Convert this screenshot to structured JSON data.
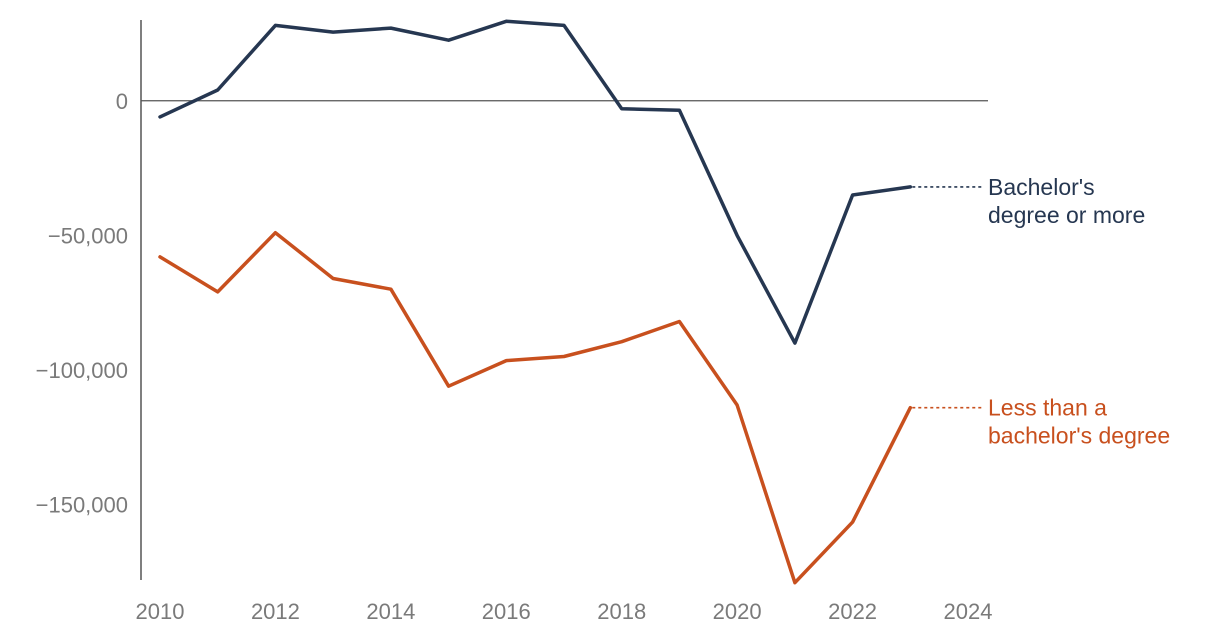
{
  "chart_data": {
    "type": "line",
    "title": "",
    "xlabel": "",
    "ylabel": "",
    "xlim": [
      2010,
      2024
    ],
    "ylim": [
      -178000,
      30000
    ],
    "x_ticks": [
      {
        "value": 2010,
        "label": "2010"
      },
      {
        "value": 2012,
        "label": "2012"
      },
      {
        "value": 2014,
        "label": "2014"
      },
      {
        "value": 2016,
        "label": "2016"
      },
      {
        "value": 2018,
        "label": "2018"
      },
      {
        "value": 2020,
        "label": "2020"
      },
      {
        "value": 2022,
        "label": "2022"
      },
      {
        "value": 2024,
        "label": "2024"
      }
    ],
    "y_ticks": [
      {
        "value": 0,
        "label": "0"
      },
      {
        "value": -50000,
        "label": "−50,000"
      },
      {
        "value": -100000,
        "label": "−100,000"
      },
      {
        "value": -150000,
        "label": "−150,000"
      }
    ],
    "grid": false,
    "zero_line": true,
    "legend": "inline-right",
    "x": [
      2010,
      2011,
      2012,
      2013,
      2014,
      2015,
      2016,
      2017,
      2018,
      2019,
      2020,
      2021,
      2022,
      2023
    ],
    "series": [
      {
        "label_lines": [
          "Bachelor's",
          "degree or more"
        ],
        "color": "#263751",
        "values": [
          -6000,
          4000,
          28000,
          25500,
          27000,
          22500,
          29500,
          28000,
          -3000,
          -3500,
          -50000,
          -90000,
          -35000,
          -32000
        ]
      },
      {
        "label_lines": [
          "Less than a",
          "bachelor's degree"
        ],
        "color": "#c8501e",
        "values": [
          -58000,
          -71000,
          -49000,
          -66000,
          -70000,
          -106000,
          -96500,
          -95000,
          -89500,
          -82000,
          -113000,
          -179000,
          -156500,
          -114000
        ]
      }
    ]
  }
}
